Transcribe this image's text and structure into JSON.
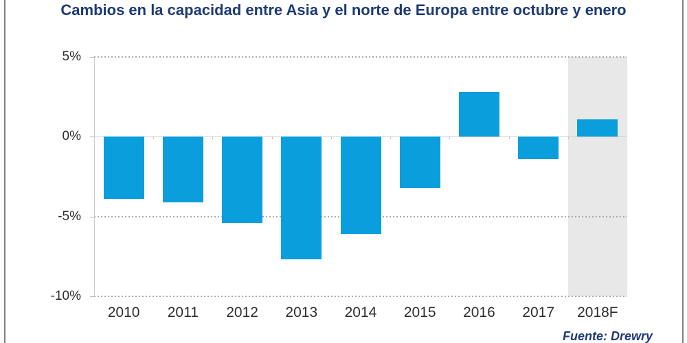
{
  "chart_data": {
    "type": "bar",
    "title": "Cambios en la capacidad entre Asia y el norte de Europa entre octubre y enero",
    "categories": [
      "2010",
      "2011",
      "2012",
      "2013",
      "2014",
      "2015",
      "2016",
      "2017",
      "2018F"
    ],
    "values": [
      -3.9,
      -4.1,
      -5.4,
      -7.7,
      -6.1,
      -3.2,
      2.8,
      -1.4,
      1.1
    ],
    "unit": "%",
    "xlabel": "",
    "ylabel": "",
    "ylim": [
      -10,
      5
    ],
    "yticks": [
      5,
      0,
      -5,
      -10
    ],
    "ytick_labels": [
      "5%",
      "0%",
      "-5%",
      "-10%"
    ],
    "grid": "horizontal-dotted",
    "legend": "none",
    "bar_color": "#0a9edd",
    "highlight_category": "2018F",
    "highlight_band_color": "#e8e8e8",
    "title_color": "#1e3a75",
    "source": "Fuente: Drewry"
  }
}
